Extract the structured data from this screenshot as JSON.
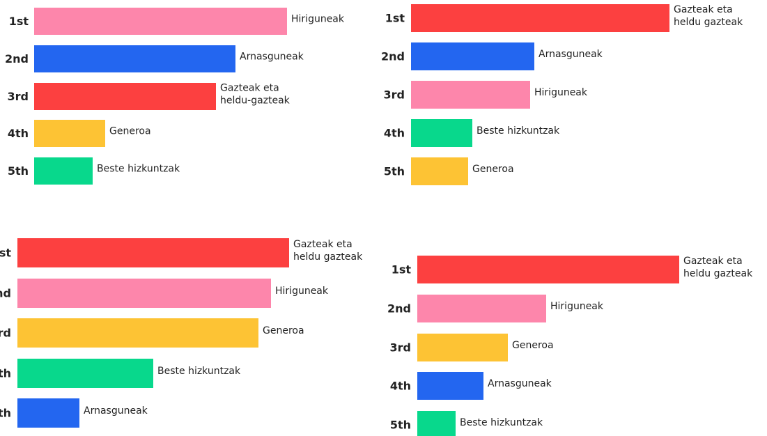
{
  "chart_data": [
    {
      "type": "bar",
      "orientation": "horizontal",
      "categories": [
        "1st",
        "2nd",
        "3rd",
        "4th",
        "5th"
      ],
      "labels": [
        [
          "Hiriguneak"
        ],
        [
          "Arnasguneak"
        ],
        [
          "Gazteak eta",
          "heldu-gazteak"
        ],
        [
          "Generoa"
        ],
        [
          "Beste hizkuntzak"
        ]
      ],
      "values": [
        363,
        289,
        261,
        102,
        84
      ],
      "colors": [
        "#fd86ab",
        "#2366f0",
        "#fc4040",
        "#fdc334",
        "#08d88c"
      ],
      "xlim": [
        0,
        400
      ]
    },
    {
      "type": "bar",
      "orientation": "horizontal",
      "categories": [
        "1st",
        "2nd",
        "3rd",
        "4th",
        "5th"
      ],
      "labels": [
        [
          "Gazteak eta",
          "heldu gazteak"
        ],
        [
          "Arnasguneak"
        ],
        [
          "Hiriguneak"
        ],
        [
          "Beste hizkuntzak"
        ],
        [
          "Generoa"
        ]
      ],
      "values": [
        371,
        177,
        171,
        88,
        82
      ],
      "colors": [
        "#fc4040",
        "#2366f0",
        "#fd86ab",
        "#08d88c",
        "#fdc334"
      ],
      "xlim": [
        0,
        400
      ]
    },
    {
      "type": "bar",
      "orientation": "horizontal",
      "categories": [
        "st",
        "nd",
        "rd",
        "th",
        "th"
      ],
      "labels": [
        [
          "Gazteak eta",
          "heldu gazteak"
        ],
        [
          "Hiriguneak"
        ],
        [
          "Generoa"
        ],
        [
          "Beste hizkuntzak"
        ],
        [
          "Arnasguneak"
        ]
      ],
      "values": [
        390,
        364,
        346,
        195,
        89
      ],
      "colors": [
        "#fc4040",
        "#fd86ab",
        "#fdc334",
        "#08d88c",
        "#2366f0"
      ],
      "xlim": [
        0,
        400
      ]
    },
    {
      "type": "bar",
      "orientation": "horizontal",
      "categories": [
        "1st",
        "2nd",
        "3rd",
        "4th",
        "5th"
      ],
      "labels": [
        [
          "Gazteak eta",
          "heldu gazteak"
        ],
        [
          "Hiriguneak"
        ],
        [
          "Generoa"
        ],
        [
          "Arnasguneak"
        ],
        [
          "Beste hizkuntzak"
        ]
      ],
      "values": [
        376,
        185,
        130,
        95,
        55
      ],
      "colors": [
        "#fc4040",
        "#fd86ab",
        "#fdc334",
        "#2366f0",
        "#08d88c"
      ],
      "xlim": [
        0,
        400
      ]
    }
  ]
}
